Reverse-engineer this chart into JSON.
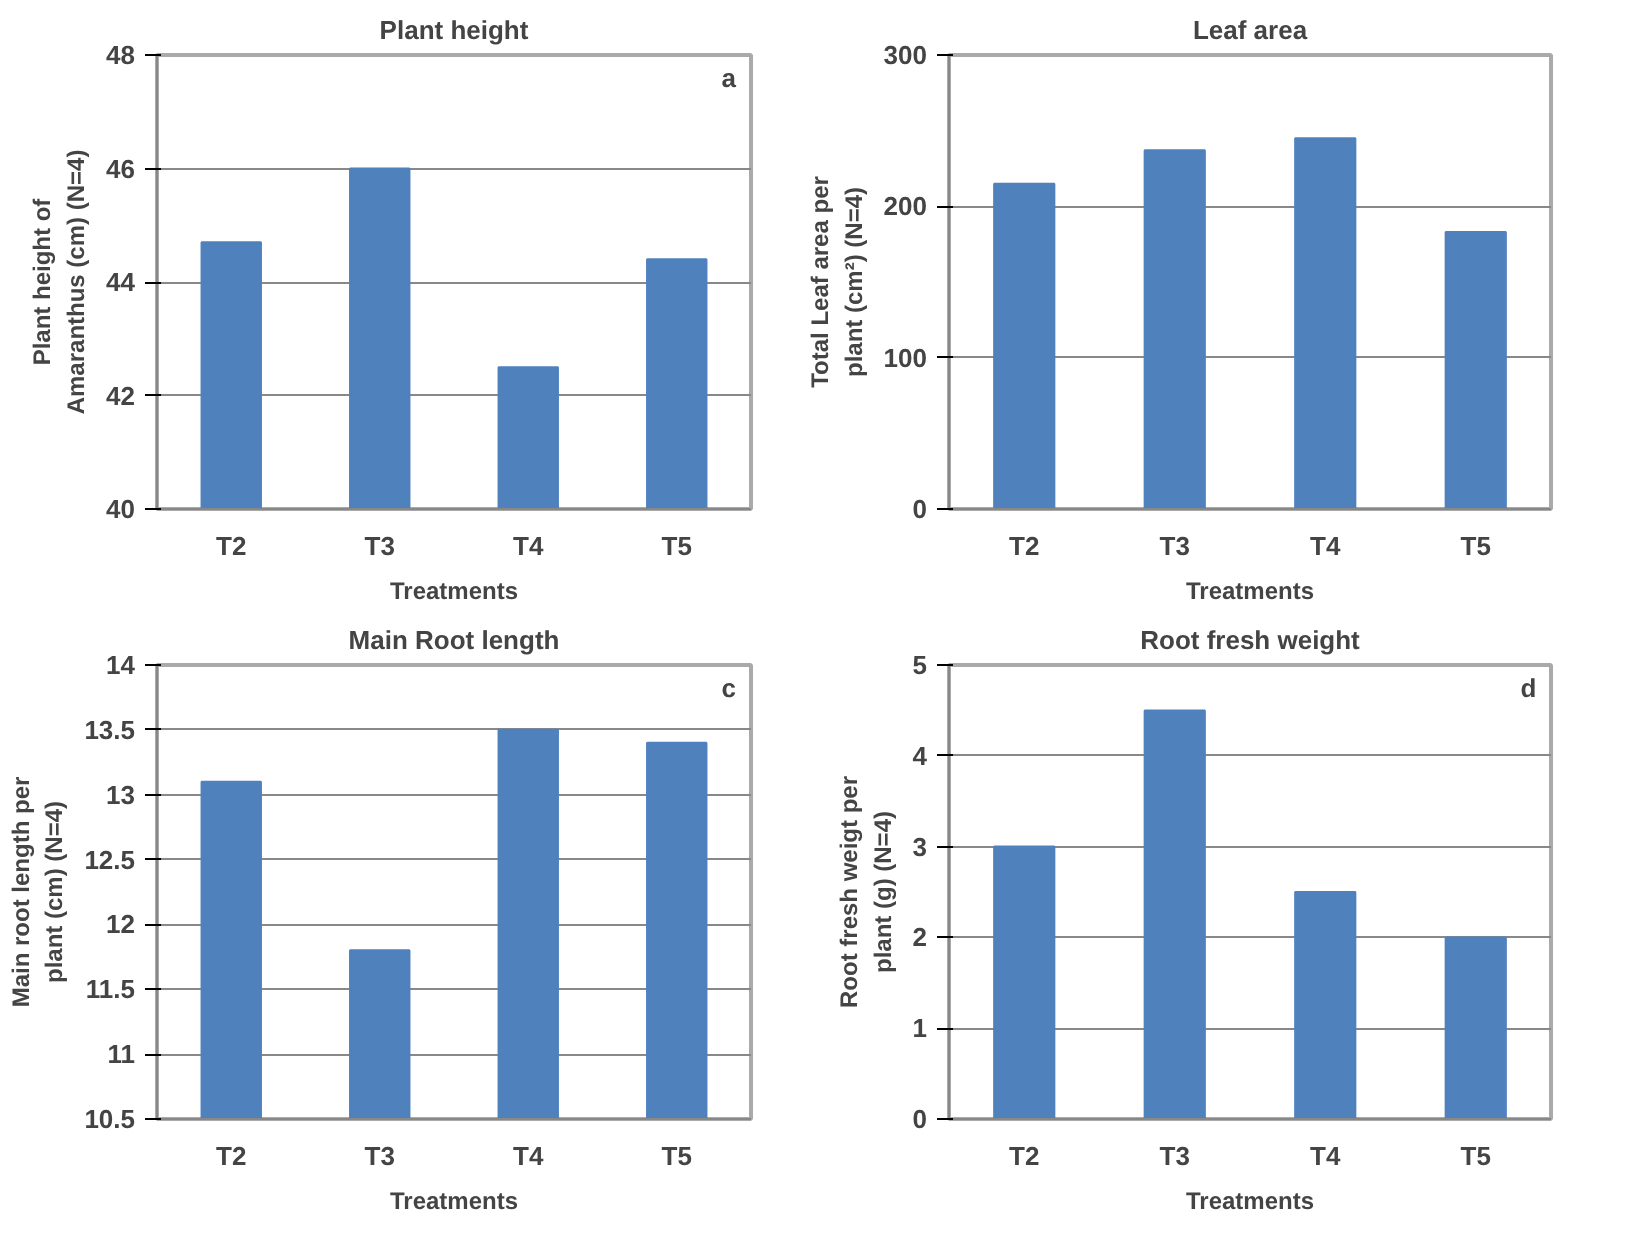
{
  "chart_data": [
    {
      "type": "bar",
      "title": "Plant height",
      "annotations": [
        "a"
      ],
      "xlabel": "Treatments",
      "ylabel": "Plant height of Amaranthus (cm) (N=4)",
      "categories": [
        "T2",
        "T3",
        "T4",
        "T5"
      ],
      "values": [
        44.7,
        46.0,
        42.5,
        44.4
      ],
      "color": "#4f81bd",
      "ylim": [
        40,
        48
      ],
      "yticks": [
        40,
        42,
        44,
        46,
        48
      ],
      "grid": "y"
    },
    {
      "type": "bar",
      "title": "Leaf area",
      "xlabel": "Treatments",
      "ylabel": "Total Leaf area per plant (cm²) (N=4)",
      "categories": [
        "T2",
        "T3",
        "T4",
        "T5"
      ],
      "values": [
        215,
        237,
        245,
        183
      ],
      "color": "#4f81bd",
      "ylim": [
        0,
        300
      ],
      "yticks": [
        0,
        100,
        200,
        300
      ],
      "grid": "y"
    },
    {
      "type": "bar",
      "title": "Main Root length",
      "annotations": [
        "c"
      ],
      "xlabel": "Treatments",
      "ylabel": "Main root length per plant (cm) (N=4)",
      "categories": [
        "T2",
        "T3",
        "T4",
        "T5"
      ],
      "values": [
        13.1,
        11.8,
        13.5,
        13.4
      ],
      "color": "#4f81bd",
      "ylim": [
        10.5,
        14
      ],
      "yticks": [
        10.5,
        11,
        11.5,
        12,
        12.5,
        13,
        13.5,
        14
      ],
      "grid": "y"
    },
    {
      "type": "bar",
      "title": "Root fresh weight",
      "annotations": [
        "d"
      ],
      "xlabel": "Treatments",
      "ylabel": "Root fresh weigt per plant (g) (N=4)",
      "categories": [
        "T2",
        "T3",
        "T4",
        "T5"
      ],
      "values": [
        3.0,
        4.5,
        2.5,
        2.0
      ],
      "color": "#4f81bd",
      "ylim": [
        0,
        5
      ],
      "yticks": [
        0,
        1,
        2,
        3,
        4,
        5
      ],
      "grid": "y"
    }
  ]
}
